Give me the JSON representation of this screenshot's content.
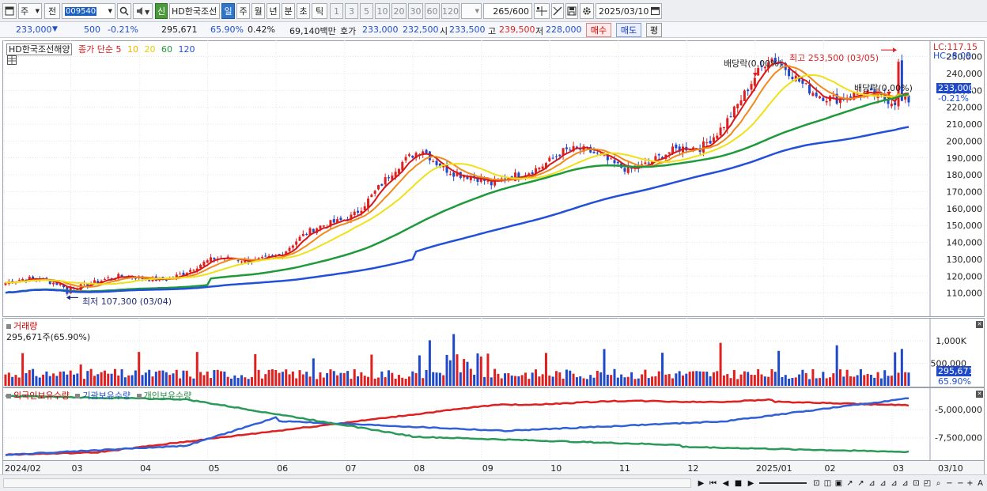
{
  "toolbar": {
    "market_label": "주",
    "prev_label": "전",
    "code": "009540",
    "name_prefix": "신",
    "stock_name": "HD한국조선",
    "periods": [
      "일",
      "주",
      "월",
      "년",
      "분",
      "초",
      "틱"
    ],
    "selected_period": "일",
    "intervals": [
      "1",
      "3",
      "5",
      "10",
      "20",
      "30",
      "60",
      "120"
    ],
    "count": "265",
    "count_total": "/600",
    "date": "2025/03/10"
  },
  "quote": {
    "price": "233,000",
    "change": "500",
    "change_pct": "-0.21%",
    "volume": "295,671",
    "vol_ratio": "65.90%",
    "turnover_ratio": "0.42%",
    "amount": "69,140백만",
    "bid_label": "호가",
    "bid": "233,000",
    "ask": "232,500",
    "open_label": "시",
    "open": "233,500",
    "high_label": "고",
    "high": "239,500",
    "low_label": "저",
    "low": "228,000",
    "buy_label": "매수",
    "sell_label": "매도",
    "eval_label": "평"
  },
  "price_panel": {
    "title": "HD한국조선해양",
    "legend_prefix": "종가 단순",
    "ma_periods": [
      "5",
      "10",
      "20",
      "60",
      "120"
    ],
    "lc": "LC:117.15",
    "hc": "HC:-8.09",
    "current_price_tag": "233,000",
    "current_change_tag": "-0.21%",
    "annotations": {
      "high": "최고 253,500 (03/05)",
      "low": "최저 107,300 (03/04)",
      "dividend1": "배당락(0.00%)",
      "dividend2": "배당락(0.00%)"
    }
  },
  "volume_panel": {
    "title": "거래량",
    "summary": "295,671주(65.90%)",
    "current_tag": "295,671",
    "current_pct": "65.90%"
  },
  "holdings_panel": {
    "legend": [
      "외국인보유수량",
      "기관보유수량",
      "개인보유수량"
    ]
  },
  "x_axis": {
    "labels": [
      "2024/02",
      "03",
      "04",
      "05",
      "06",
      "07",
      "08",
      "09",
      "10",
      "11",
      "12",
      "2025/01",
      "02",
      "03"
    ],
    "end_label": "03/10"
  },
  "colors": {
    "up": "#e02020",
    "down": "#1f49c9",
    "ma5": "#d81818",
    "ma10": "#f08a1e",
    "ma20": "#f0e018",
    "ma60": "#1f9a3a",
    "ma120": "#2350d8",
    "foreign": "#e02020",
    "institution": "#3060d8",
    "individual": "#2a9a58"
  },
  "chart_data": [
    {
      "type": "candlestick",
      "title": "HD한국조선해양",
      "x_labels": [
        "2024/02",
        "03",
        "04",
        "05",
        "06",
        "07",
        "08",
        "09",
        "10",
        "11",
        "12",
        "2025/01",
        "02",
        "03"
      ],
      "y_ticks": [
        110000,
        120000,
        130000,
        140000,
        150000,
        160000,
        170000,
        180000,
        190000,
        200000,
        210000,
        220000,
        230000,
        240000,
        250000
      ],
      "ylim": [
        100000,
        255000
      ],
      "close_by_month": [
        {
          "month": "2024/02",
          "close": 116000
        },
        {
          "month": "03",
          "close": 113000
        },
        {
          "month": "04",
          "close": 120000
        },
        {
          "month": "05",
          "close": 130000
        },
        {
          "month": "06",
          "close": 131000
        },
        {
          "month": "07",
          "close": 158000
        },
        {
          "month": "08",
          "close": 200000
        },
        {
          "month": "09",
          "close": 170000
        },
        {
          "month": "10",
          "close": 190000
        },
        {
          "month": "11",
          "close": 190000
        },
        {
          "month": "12",
          "close": 198000
        },
        {
          "month": "2025/01",
          "close": 240000
        },
        {
          "month": "02",
          "close": 225000
        },
        {
          "month": "03",
          "close": 233000
        }
      ],
      "high": 253500,
      "low": 107300,
      "moving_averages": [
        "5",
        "10",
        "20",
        "60",
        "120"
      ]
    },
    {
      "type": "bar",
      "title": "거래량",
      "y_ticks_labels": [
        "500,000",
        "1,000K"
      ],
      "last_value": 295671
    },
    {
      "type": "line",
      "series": [
        {
          "name": "외국인보유수량"
        },
        {
          "name": "기관보유수량"
        },
        {
          "name": "개인보유수량"
        }
      ],
      "y_ticks_labels": [
        "-5,000,000",
        "-7,500,000"
      ]
    }
  ]
}
